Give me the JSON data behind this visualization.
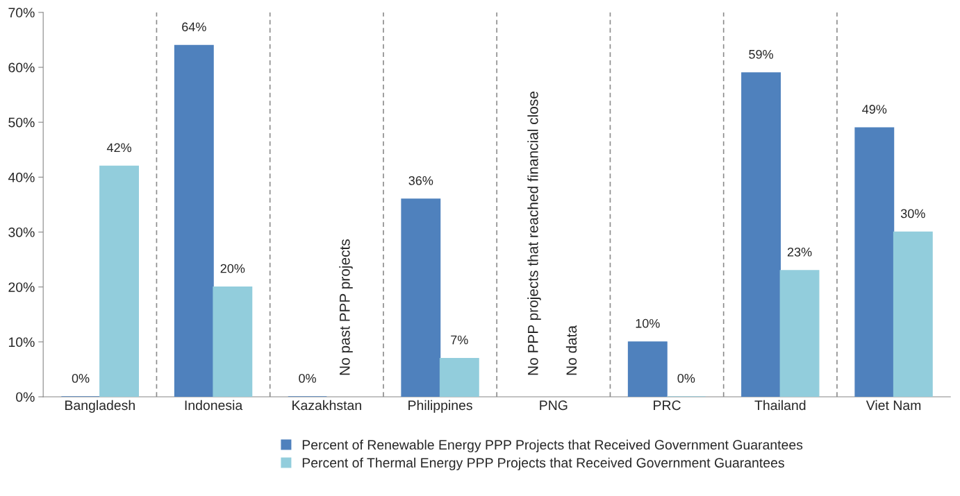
{
  "chart_data": {
    "type": "bar",
    "categories": [
      "Bangladesh",
      "Indonesia",
      "Kazakhstan",
      "Philippines",
      "PNG",
      "PRC",
      "Thailand",
      "Viet Nam"
    ],
    "series": [
      {
        "name": "Percent of Renewable Energy PPP Projects that Received Government Guarantees",
        "color": "#4f81bd",
        "values": [
          0,
          64,
          0,
          36,
          null,
          10,
          59,
          49
        ]
      },
      {
        "name": "Percent of Thermal Energy PPP Projects that Received Government Guarantees",
        "color": "#92cddc",
        "values": [
          42,
          20,
          null,
          7,
          null,
          0,
          23,
          30
        ]
      }
    ],
    "ylim": [
      0,
      70
    ],
    "yticks": [
      {
        "value": 0,
        "label": "0%"
      },
      {
        "value": 10,
        "label": "10%"
      },
      {
        "value": 20,
        "label": "20%"
      },
      {
        "value": 30,
        "label": "30%"
      },
      {
        "value": 40,
        "label": "40%"
      },
      {
        "value": 50,
        "label": "50%"
      },
      {
        "value": 60,
        "label": "60%"
      },
      {
        "value": 70,
        "label": "70%"
      }
    ],
    "value_labels": [
      [
        "0%",
        "64%",
        "0%",
        "36%",
        null,
        "10%",
        "59%",
        "49%"
      ],
      [
        "42%",
        "20%",
        null,
        "7%",
        null,
        "0%",
        "23%",
        "30%"
      ]
    ],
    "annotations": [
      "No past PPP projects",
      "No PPP projects that reached financial close",
      "No data"
    ],
    "grid": "x",
    "legend": "bottom"
  }
}
